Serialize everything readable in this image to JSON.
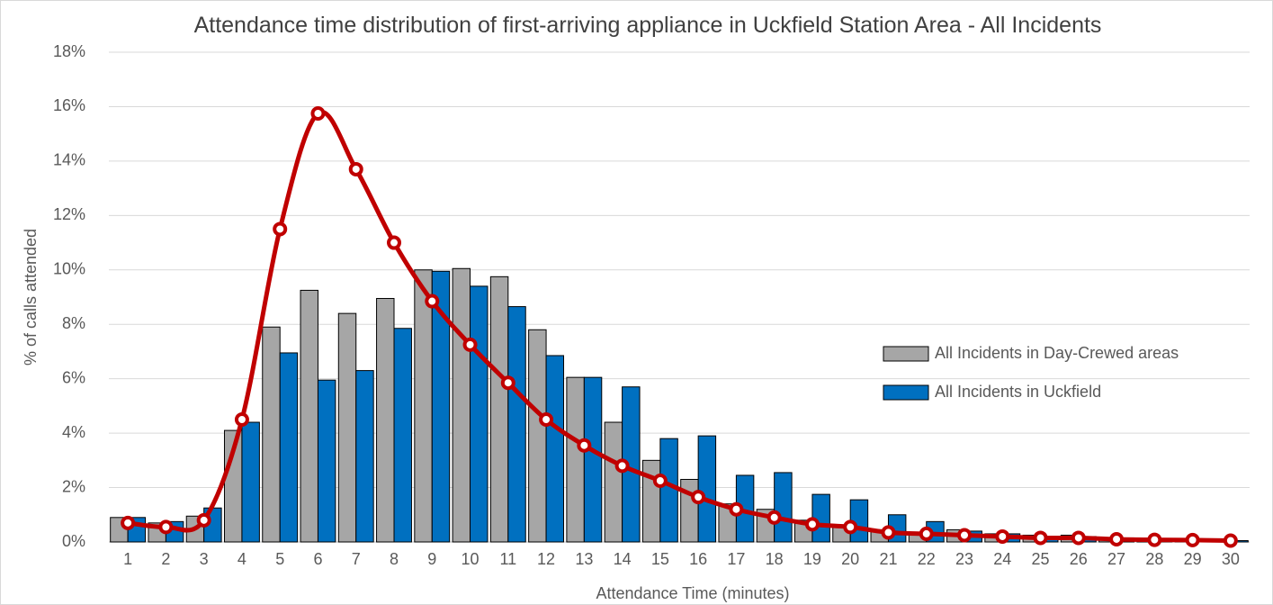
{
  "chart_data": {
    "type": "bar",
    "title": "Attendance time distribution of first-arriving appliance in Uckfield Station Area - All Incidents",
    "x_label": "Attendance Time (minutes)",
    "y_label": "% of calls attended",
    "categories": [
      "1",
      "2",
      "3",
      "4",
      "5",
      "6",
      "7",
      "8",
      "9",
      "10",
      "11",
      "12",
      "13",
      "14",
      "15",
      "16",
      "17",
      "18",
      "19",
      "20",
      "21",
      "22",
      "23",
      "24",
      "25",
      "26",
      "27",
      "28",
      "29",
      "30"
    ],
    "series": [
      {
        "name": "All Incidents in Day-Crewed areas",
        "type": "bar",
        "color": "#a6a6a6",
        "values": [
          0.9,
          0.7,
          0.95,
          4.1,
          7.9,
          9.25,
          8.4,
          8.95,
          10.0,
          10.05,
          9.75,
          7.8,
          6.05,
          4.4,
          3.0,
          2.3,
          1.4,
          1.2,
          0.8,
          0.6,
          0.45,
          0.35,
          0.45,
          0.3,
          0.25,
          0.25,
          0.15,
          0.1,
          0.1,
          0.05
        ]
      },
      {
        "name": "All Incidents in Uckfield",
        "type": "bar",
        "color": "#0070c0",
        "values": [
          0.9,
          0.75,
          1.25,
          4.4,
          6.95,
          5.95,
          6.3,
          7.85,
          9.95,
          9.4,
          8.65,
          6.85,
          6.05,
          5.7,
          3.8,
          3.9,
          2.45,
          2.55,
          1.75,
          1.55,
          1.0,
          0.75,
          0.4,
          0.3,
          0.2,
          0.2,
          0.15,
          0.1,
          0.1,
          0.05
        ]
      },
      {
        "type": "line",
        "color": "#c00000",
        "values": [
          0.7,
          0.55,
          0.8,
          4.5,
          11.5,
          15.75,
          13.7,
          11.0,
          8.85,
          7.25,
          5.85,
          4.5,
          3.55,
          2.8,
          2.25,
          1.65,
          1.2,
          0.9,
          0.65,
          0.55,
          0.35,
          0.3,
          0.25,
          0.2,
          0.15,
          0.15,
          0.1,
          0.08,
          0.07,
          0.05
        ]
      }
    ],
    "ylim": [
      0,
      18
    ],
    "yticks": [
      {
        "value": 0,
        "label": "0%"
      },
      {
        "value": 2,
        "label": "2%"
      },
      {
        "value": 4,
        "label": "4%"
      },
      {
        "value": 6,
        "label": "6%"
      },
      {
        "value": 8,
        "label": "8%"
      },
      {
        "value": 10,
        "label": "10%"
      },
      {
        "value": 12,
        "label": "12%"
      },
      {
        "value": 14,
        "label": "14%"
      },
      {
        "value": 16,
        "label": "16%"
      },
      {
        "value": 18,
        "label": "18%"
      }
    ],
    "grid": true,
    "legend": "right"
  }
}
